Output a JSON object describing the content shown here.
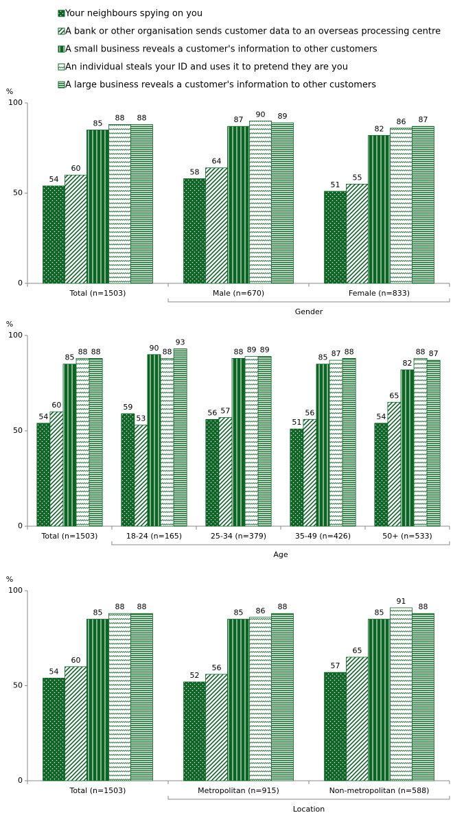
{
  "chart_data": [
    {
      "type": "bar",
      "y_label": "%",
      "ylim": [
        0,
        100
      ],
      "yticks": [
        0,
        50,
        100
      ],
      "categories": [
        "Total (n=1503)",
        "Male (n=670)",
        "Female (n=833)"
      ],
      "x_label": "Gender",
      "series": [
        {
          "name": "Your neighbours spying on you",
          "color": "#0b6623",
          "pattern": "dots",
          "values": [
            54,
            58,
            51
          ]
        },
        {
          "name": "A bank or other organisation sends customer data to an overseas processing centre",
          "color": "#0b6623",
          "pattern": "diagonal",
          "values": [
            60,
            64,
            55
          ]
        },
        {
          "name": "A small business reveals a customer's information to other customers",
          "color": "#0b6623",
          "pattern": "vertical",
          "values": [
            85,
            87,
            82
          ]
        },
        {
          "name": "An individual steals your ID and uses it to pretend they are you",
          "color": "#0b6623",
          "pattern": "zigzag",
          "values": [
            88,
            90,
            86
          ]
        },
        {
          "name": "A large business reveals a customer's information to other customers",
          "color": "#0b6623",
          "pattern": "horizontal",
          "values": [
            88,
            89,
            87
          ]
        }
      ]
    },
    {
      "type": "bar",
      "y_label": "%",
      "ylim": [
        0,
        100
      ],
      "yticks": [
        0,
        50,
        100
      ],
      "categories": [
        "Total (n=1503)",
        "18-24 (n=165)",
        "25-34 (n=379)",
        "35-49 (n=426)",
        "50+ (n=533)"
      ],
      "x_label": "Age",
      "series": [
        {
          "color": "#0b6623",
          "pattern": "dots",
          "values": [
            54,
            59,
            56,
            51,
            54
          ]
        },
        {
          "color": "#0b6623",
          "pattern": "diagonal",
          "values": [
            60,
            53,
            57,
            56,
            65
          ]
        },
        {
          "color": "#0b6623",
          "pattern": "vertical",
          "values": [
            85,
            90,
            88,
            85,
            82
          ]
        },
        {
          "color": "#0b6623",
          "pattern": "zigzag",
          "values": [
            88,
            88,
            89,
            87,
            88
          ]
        },
        {
          "color": "#0b6623",
          "pattern": "horizontal",
          "values": [
            88,
            93,
            89,
            88,
            87
          ]
        }
      ]
    },
    {
      "type": "bar",
      "y_label": "%",
      "ylim": [
        0,
        100
      ],
      "yticks": [
        0,
        50,
        100
      ],
      "categories": [
        "Total (n=1503)",
        "Metropolitan (n=915)",
        "Non-metropolitan (n=588)"
      ],
      "x_label": "Location",
      "series": [
        {
          "color": "#0b6623",
          "pattern": "dots",
          "values": [
            54,
            52,
            57
          ]
        },
        {
          "color": "#0b6623",
          "pattern": "diagonal",
          "values": [
            60,
            56,
            65
          ]
        },
        {
          "color": "#0b6623",
          "pattern": "vertical",
          "values": [
            85,
            85,
            85
          ]
        },
        {
          "color": "#0b6623",
          "pattern": "zigzag",
          "values": [
            88,
            86,
            91
          ]
        },
        {
          "color": "#0b6623",
          "pattern": "horizontal",
          "values": [
            88,
            88,
            88
          ]
        }
      ]
    }
  ]
}
